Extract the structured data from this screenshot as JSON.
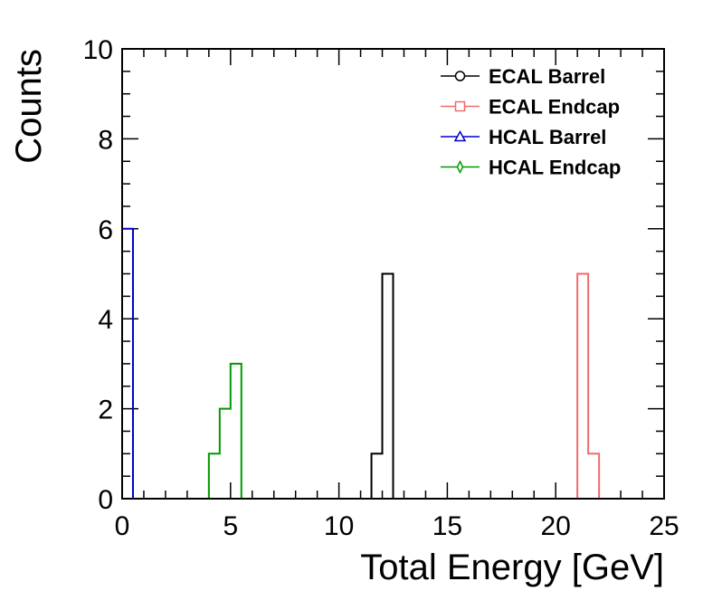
{
  "chart_data": {
    "type": "histogram",
    "xlabel": "Total Energy [GeV]",
    "ylabel": "Counts",
    "xlim": [
      0,
      25
    ],
    "ylim": [
      0,
      10
    ],
    "bin_width": 0.5,
    "x_ticks": [
      "0",
      "5",
      "10",
      "15",
      "20",
      "25"
    ],
    "y_ticks": [
      "0",
      "2",
      "4",
      "6",
      "8",
      "10"
    ],
    "legend_position": "top-right",
    "series": [
      {
        "name": "ECAL Barrel",
        "color": "#000000",
        "marker": "circle",
        "bins": [
          {
            "x": 11.5,
            "count": 1
          },
          {
            "x": 12.0,
            "count": 5
          }
        ]
      },
      {
        "name": "ECAL Endcap",
        "color": "#f06b6b",
        "marker": "square",
        "bins": [
          {
            "x": 21.0,
            "count": 5
          },
          {
            "x": 21.5,
            "count": 1
          }
        ]
      },
      {
        "name": "HCAL Barrel",
        "color": "#0000cc",
        "marker": "triangle",
        "bins": [
          {
            "x": 0.0,
            "count": 6
          }
        ]
      },
      {
        "name": "HCAL Endcap",
        "color": "#009900",
        "marker": "diamond",
        "bins": [
          {
            "x": 4.0,
            "count": 1
          },
          {
            "x": 4.5,
            "count": 2
          },
          {
            "x": 5.0,
            "count": 3
          }
        ]
      }
    ]
  }
}
